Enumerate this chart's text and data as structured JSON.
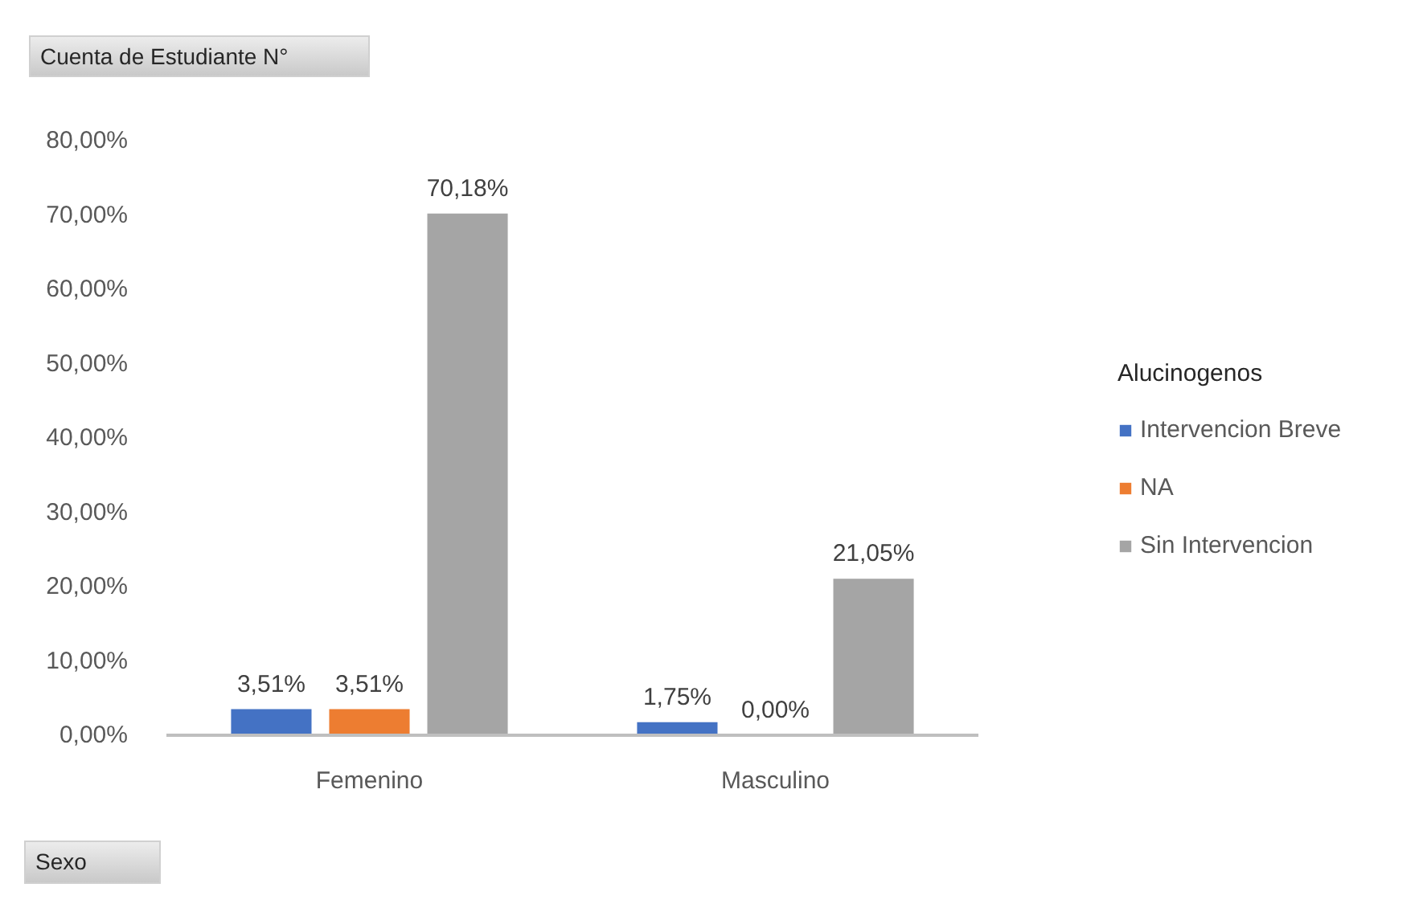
{
  "chart_data": {
    "type": "bar",
    "ylabel": "Cuenta de Estudiante N°",
    "xlabel": "Sexo",
    "legend_title": "Alucinogenos",
    "legend": "right",
    "grid": false,
    "categories": [
      "Femenino",
      "Masculino"
    ],
    "series": [
      {
        "name": "Intervencion Breve",
        "color": "#4472c4",
        "values": [
          3.51,
          1.75
        ],
        "value_labels": [
          "3,51%",
          "1,75%"
        ]
      },
      {
        "name": "NA",
        "color": "#ed7d31",
        "values": [
          3.51,
          0
        ],
        "value_labels": [
          "3,51%",
          "0,00%"
        ]
      },
      {
        "name": "Sin Intervencion",
        "color": "#a5a5a5",
        "values": [
          70.18,
          21.05
        ],
        "value_labels": [
          "70,18%",
          "21,05%"
        ]
      }
    ],
    "ylim": [
      0,
      80
    ],
    "yticks": [
      {
        "value": 0,
        "label": "0,00%"
      },
      {
        "value": 10,
        "label": "10,00%"
      },
      {
        "value": 20,
        "label": "20,00%"
      },
      {
        "value": 30,
        "label": "30,00%"
      },
      {
        "value": 40,
        "label": "40,00%"
      },
      {
        "value": 50,
        "label": "50,00%"
      },
      {
        "value": 60,
        "label": "60,00%"
      },
      {
        "value": 70,
        "label": "70,00%"
      },
      {
        "value": 80,
        "label": "80,00%"
      }
    ]
  }
}
